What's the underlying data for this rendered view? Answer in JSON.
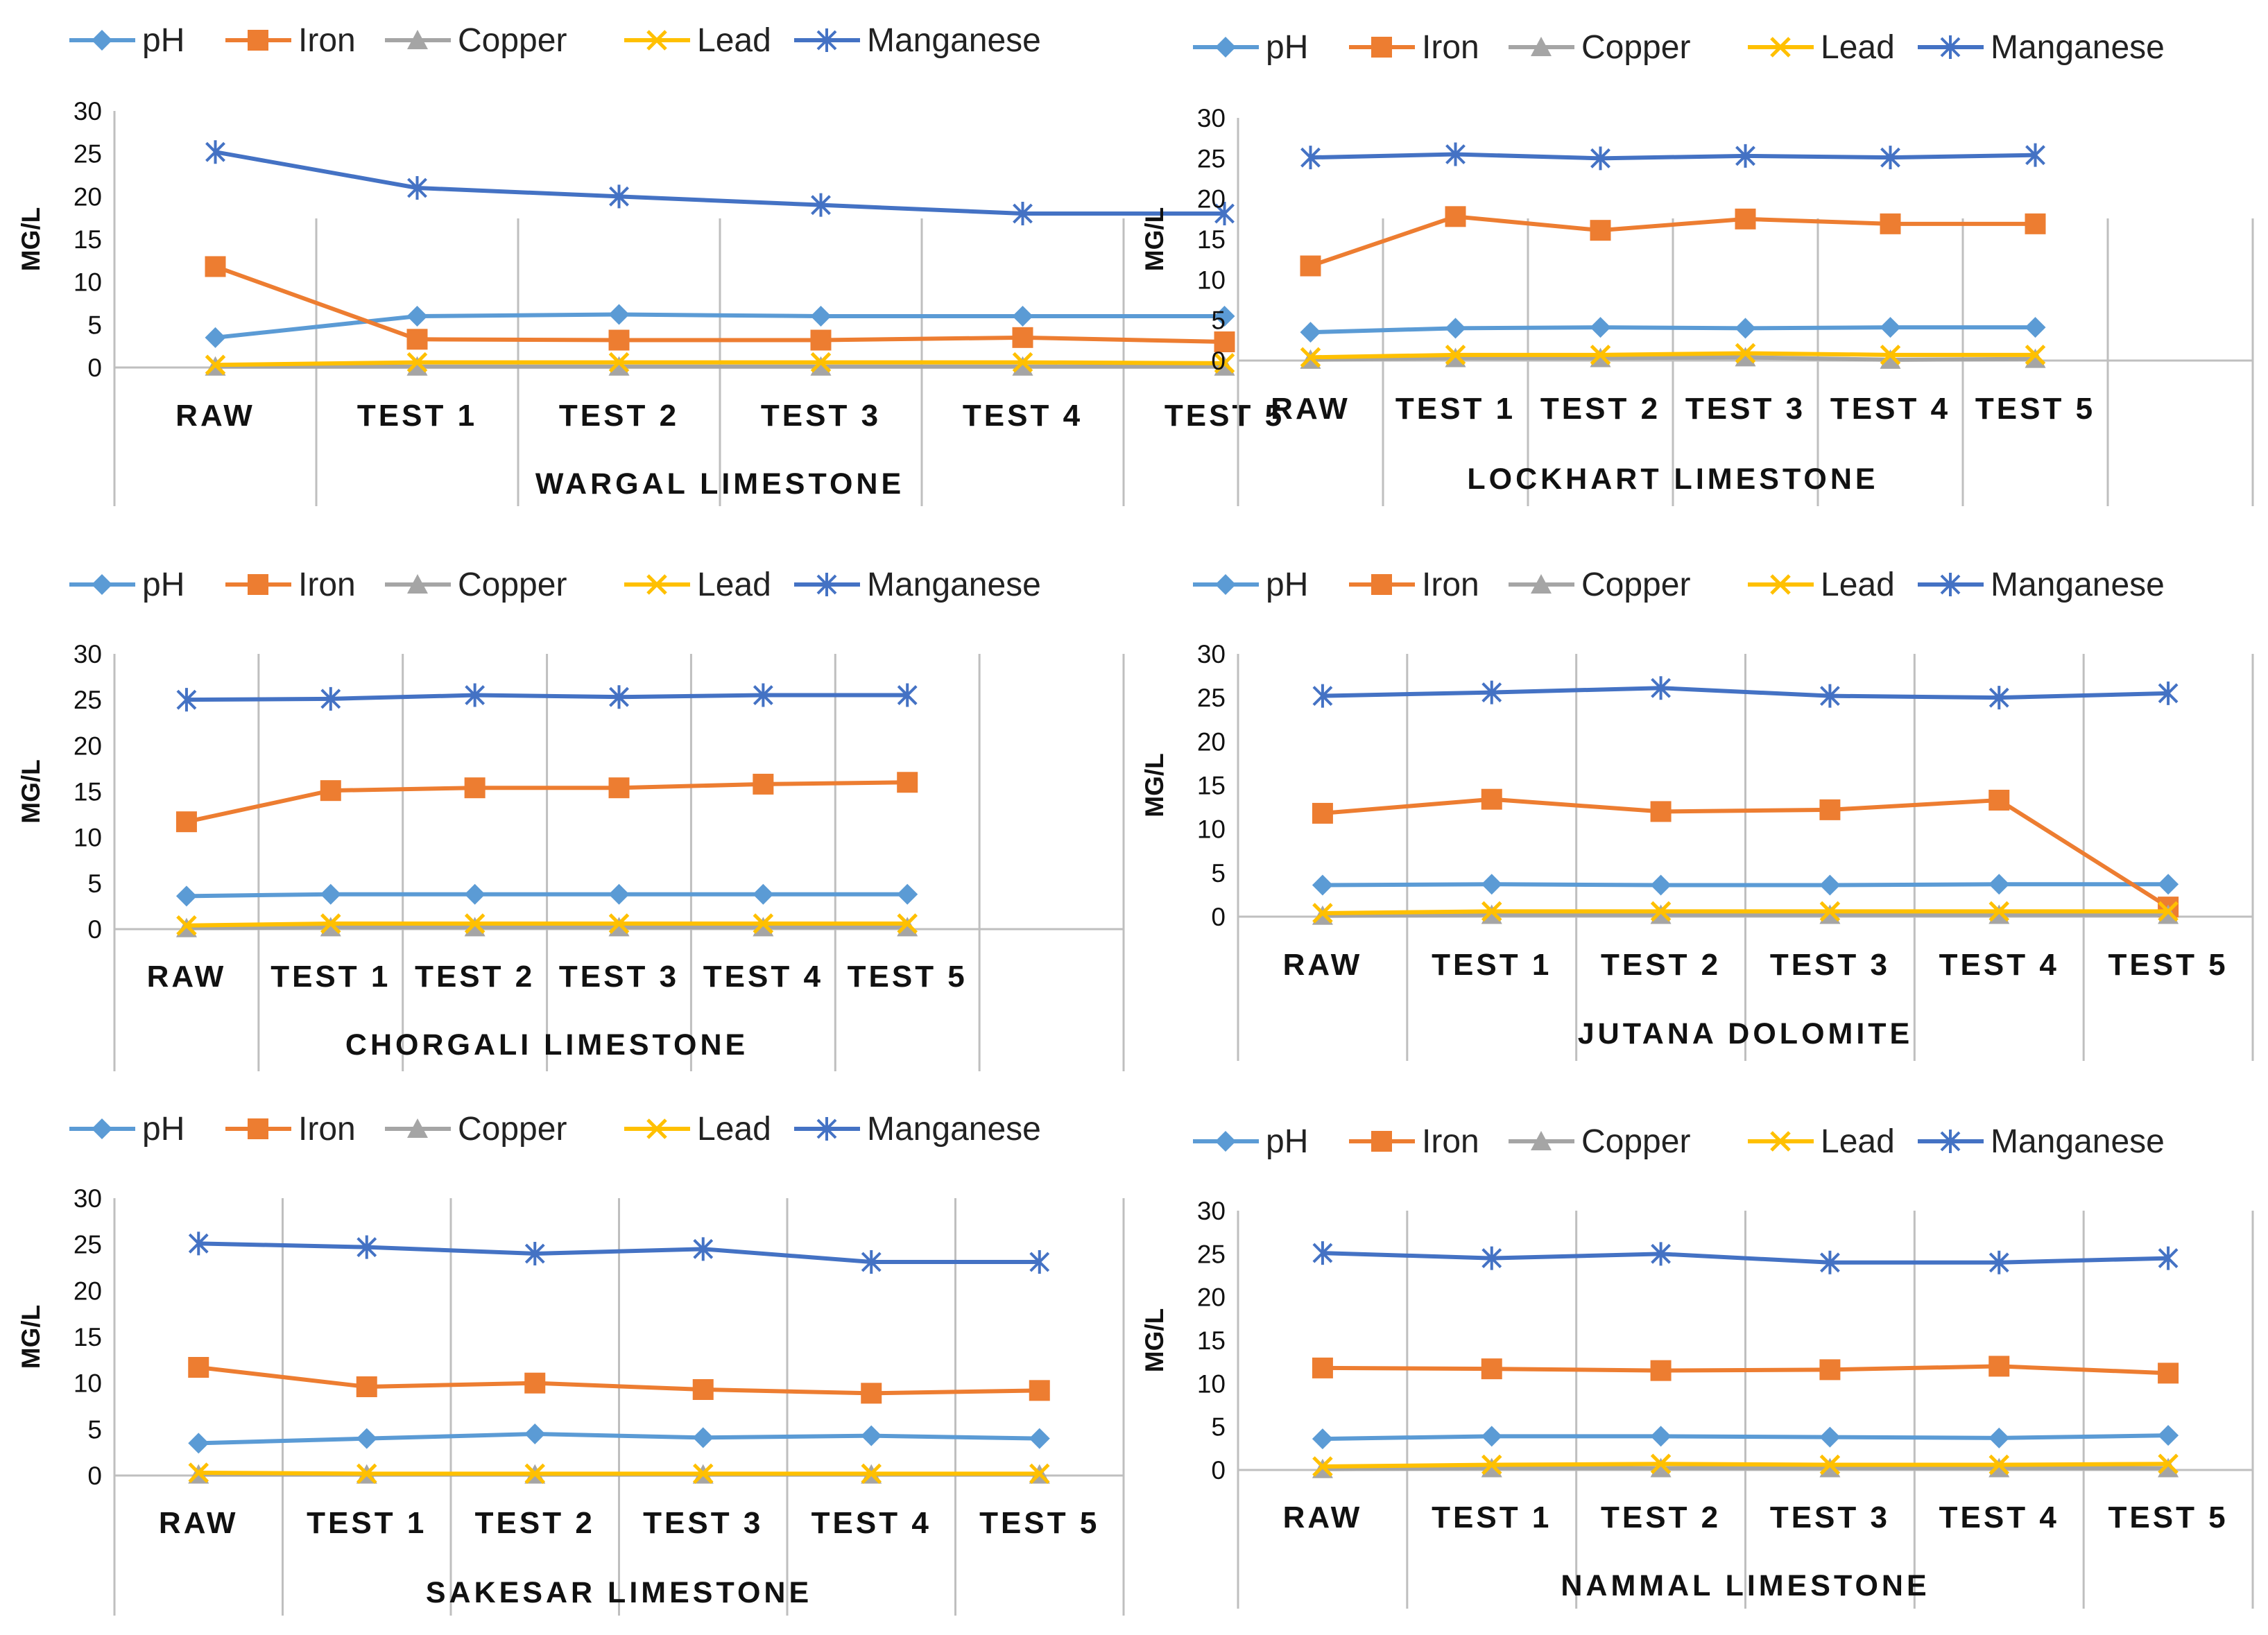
{
  "series_styles": [
    {
      "name": "pH",
      "color": "#5B9BD5",
      "marker": "diamond"
    },
    {
      "name": "Iron",
      "color": "#ED7D31",
      "marker": "square"
    },
    {
      "name": "Copper",
      "color": "#A5A5A5",
      "marker": "triangle"
    },
    {
      "name": "Lead",
      "color": "#FFC000",
      "marker": "x"
    },
    {
      "name": "Manganese",
      "color": "#4472C4",
      "marker": "star"
    }
  ],
  "chart_data": [
    {
      "type": "line",
      "title": "WARGAL LIMESTONE",
      "ylabel": "MG/L",
      "xlabel": "WARGAL LIMESTONE",
      "categories": [
        "RAW",
        "TEST 1",
        "TEST 2",
        "TEST 3",
        "TEST 4",
        "TEST 5"
      ],
      "yticks": [
        "0",
        "5",
        "10",
        "15",
        "20",
        "25",
        "30"
      ],
      "ylim": [
        0,
        30
      ],
      "grid": true,
      "legend": "top",
      "series": [
        {
          "name": "pH",
          "values": [
            3.5,
            6.0,
            6.2,
            6.0,
            6.0,
            6.0
          ]
        },
        {
          "name": "Iron",
          "values": [
            11.8,
            3.3,
            3.2,
            3.2,
            3.5,
            3.0
          ]
        },
        {
          "name": "Copper",
          "values": [
            0.1,
            0.1,
            0.1,
            0.1,
            0.1,
            0.1
          ]
        },
        {
          "name": "Lead",
          "values": [
            0.3,
            0.6,
            0.6,
            0.6,
            0.6,
            0.5
          ]
        },
        {
          "name": "Manganese",
          "values": [
            25.2,
            21.0,
            20.0,
            19.0,
            18.0,
            18.0
          ]
        }
      ]
    },
    {
      "type": "line",
      "title": "LOCKHART LIMESTONE",
      "ylabel": "MG/L",
      "xlabel": "LOCKHART LIMESTONE",
      "categories": [
        "RAW",
        "TEST 1",
        "TEST 2",
        "TEST 3",
        "TEST 4",
        "TEST 5"
      ],
      "yticks": [
        "0",
        "5",
        "10",
        "15",
        "20",
        "25",
        "30"
      ],
      "ylim": [
        0,
        30
      ],
      "grid": true,
      "legend": "top",
      "series": [
        {
          "name": "pH",
          "values": [
            3.5,
            4.0,
            4.1,
            4.0,
            4.1,
            4.1
          ]
        },
        {
          "name": "Iron",
          "values": [
            11.7,
            17.8,
            16.1,
            17.5,
            16.9,
            16.9
          ]
        },
        {
          "name": "Copper",
          "values": [
            0.1,
            0.3,
            0.3,
            0.4,
            0.1,
            0.2
          ]
        },
        {
          "name": "Lead",
          "values": [
            0.4,
            0.7,
            0.7,
            0.9,
            0.7,
            0.7
          ]
        },
        {
          "name": "Manganese",
          "values": [
            25.1,
            25.5,
            25.0,
            25.3,
            25.1,
            25.4
          ]
        }
      ]
    },
    {
      "type": "line",
      "title": "CHORGALI LIMESTONE",
      "ylabel": "MG/L",
      "xlabel": "CHORGALI LIMESTONE",
      "categories": [
        "RAW",
        "TEST 1",
        "TEST 2",
        "TEST 3",
        "TEST 4",
        "TEST 5"
      ],
      "yticks": [
        "0",
        "5",
        "10",
        "15",
        "20",
        "25",
        "30"
      ],
      "ylim": [
        0,
        30
      ],
      "grid": true,
      "legend": "top",
      "series": [
        {
          "name": "pH",
          "values": [
            3.6,
            3.8,
            3.8,
            3.8,
            3.8,
            3.8
          ]
        },
        {
          "name": "Iron",
          "values": [
            11.7,
            15.1,
            15.4,
            15.4,
            15.8,
            16.0
          ]
        },
        {
          "name": "Copper",
          "values": [
            0.1,
            0.2,
            0.2,
            0.2,
            0.2,
            0.2
          ]
        },
        {
          "name": "Lead",
          "values": [
            0.4,
            0.6,
            0.6,
            0.6,
            0.6,
            0.6
          ]
        },
        {
          "name": "Manganese",
          "values": [
            25.0,
            25.1,
            25.5,
            25.3,
            25.5,
            25.5
          ]
        }
      ]
    },
    {
      "type": "line",
      "title": "JUTANA DOLOMITE",
      "ylabel": "MG/L",
      "xlabel": "JUTANA DOLOMITE",
      "categories": [
        "RAW",
        "TEST 1",
        "TEST 2",
        "TEST 3",
        "TEST 4",
        "TEST 5"
      ],
      "yticks": [
        "0",
        "5",
        "10",
        "15",
        "20",
        "25",
        "30"
      ],
      "ylim": [
        0,
        30
      ],
      "grid": true,
      "legend": "top",
      "series": [
        {
          "name": "pH",
          "values": [
            3.6,
            3.7,
            3.6,
            3.6,
            3.7,
            3.7
          ]
        },
        {
          "name": "Iron",
          "values": [
            11.8,
            13.4,
            12.0,
            12.2,
            13.3,
            1.1
          ]
        },
        {
          "name": "Copper",
          "values": [
            0.1,
            0.2,
            0.2,
            0.2,
            0.2,
            0.2
          ]
        },
        {
          "name": "Lead",
          "values": [
            0.4,
            0.6,
            0.6,
            0.6,
            0.6,
            0.6
          ]
        },
        {
          "name": "Manganese",
          "values": [
            25.2,
            25.6,
            26.1,
            25.2,
            25.0,
            25.5
          ]
        }
      ]
    },
    {
      "type": "line",
      "title": "SAKESAR LIMESTONE",
      "ylabel": "MG/L",
      "xlabel": "SAKESAR LIMESTONE",
      "categories": [
        "RAW",
        "TEST 1",
        "TEST 2",
        "TEST 3",
        "TEST 4",
        "TEST 5"
      ],
      "yticks": [
        "0",
        "5",
        "10",
        "15",
        "20",
        "25",
        "30"
      ],
      "ylim": [
        0,
        30
      ],
      "grid": true,
      "legend": "top",
      "series": [
        {
          "name": "pH",
          "values": [
            3.5,
            4.0,
            4.5,
            4.1,
            4.3,
            4.0
          ]
        },
        {
          "name": "Iron",
          "values": [
            11.7,
            9.6,
            10.0,
            9.3,
            8.9,
            9.2
          ]
        },
        {
          "name": "Copper",
          "values": [
            0.1,
            0.1,
            0.1,
            0.1,
            0.1,
            0.1
          ]
        },
        {
          "name": "Lead",
          "values": [
            0.3,
            0.2,
            0.2,
            0.2,
            0.2,
            0.2
          ]
        },
        {
          "name": "Manganese",
          "values": [
            25.1,
            24.7,
            24.0,
            24.5,
            23.1,
            23.1
          ]
        }
      ]
    },
    {
      "type": "line",
      "title": "NAMMAL LIMESTONE",
      "ylabel": "MG/L",
      "xlabel": "NAMMAL LIMESTONE",
      "categories": [
        "RAW",
        "TEST 1",
        "TEST 2",
        "TEST 3",
        "TEST 4",
        "TEST 5"
      ],
      "yticks": [
        "0",
        "5",
        "10",
        "15",
        "20",
        "25",
        "30"
      ],
      "ylim": [
        0,
        30
      ],
      "grid": true,
      "legend": "top",
      "series": [
        {
          "name": "pH",
          "values": [
            3.6,
            3.9,
            3.9,
            3.8,
            3.7,
            4.0
          ]
        },
        {
          "name": "Iron",
          "values": [
            11.8,
            11.7,
            11.5,
            11.6,
            12.0,
            11.2
          ]
        },
        {
          "name": "Copper",
          "values": [
            0.1,
            0.2,
            0.2,
            0.2,
            0.2,
            0.2
          ]
        },
        {
          "name": "Lead",
          "values": [
            0.4,
            0.6,
            0.7,
            0.6,
            0.6,
            0.7
          ]
        },
        {
          "name": "Manganese",
          "values": [
            25.1,
            24.5,
            25.0,
            24.0,
            24.0,
            24.5
          ]
        }
      ]
    }
  ]
}
